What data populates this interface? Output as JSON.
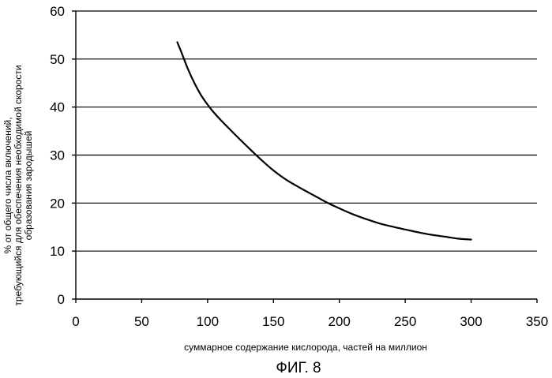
{
  "chart_data": {
    "type": "line",
    "title": "",
    "caption": "ФИГ. 8",
    "xlabel": "суммарное содержание кислорода, частей на миллион",
    "ylabel": [
      "% от общего числа включений,",
      "требующийся для обеспечения необходимой скорости",
      "образования зародышей"
    ],
    "xlim": [
      0,
      350
    ],
    "ylim": [
      0,
      60
    ],
    "xticks": [
      "0",
      "50",
      "100",
      "150",
      "200",
      "250",
      "300",
      "350"
    ],
    "yticks": [
      "0",
      "10",
      "20",
      "30",
      "40",
      "50",
      "60"
    ],
    "grid": "horizontal",
    "legend": "none",
    "series": [
      {
        "x": [
          77,
          80,
          85,
          90,
          95,
          100,
          105,
          110,
          120,
          130,
          140,
          150,
          160,
          170,
          180,
          190,
          200,
          210,
          220,
          230,
          240,
          250,
          260,
          270,
          280,
          290,
          300
        ],
        "values": [
          53.5,
          51.5,
          48.0,
          45.0,
          42.5,
          40.5,
          38.8,
          37.3,
          34.5,
          31.8,
          29.2,
          26.8,
          24.8,
          23.2,
          21.7,
          20.2,
          18.9,
          17.7,
          16.7,
          15.8,
          15.1,
          14.5,
          13.9,
          13.4,
          13.0,
          12.6,
          12.4
        ]
      }
    ]
  }
}
